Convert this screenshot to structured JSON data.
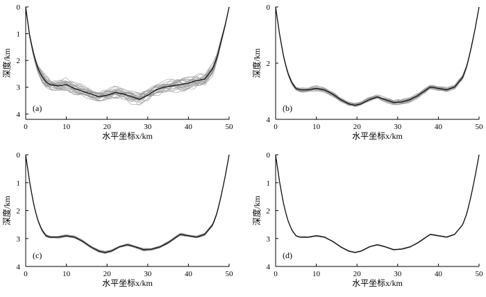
{
  "chart_data": [
    {
      "type": "line",
      "panel_label": "(a)",
      "xlabel": "水平坐标x/km",
      "ylabel": "深度/km",
      "xlim": [
        0,
        50
      ],
      "ylim": [
        4.2,
        0
      ],
      "y_inverted": true,
      "xticks": [
        "0",
        "10",
        "20",
        "30",
        "40",
        "50"
      ],
      "yticks": [
        "0",
        "1",
        "2",
        "3",
        "4"
      ],
      "grid": false,
      "series_style": "ensemble of ~25 overlapping gray curves around a black mean curve",
      "ensemble_count": 25,
      "noise_amplitude_km": 0.28,
      "mean_curve": {
        "x": [
          0,
          1,
          2,
          3,
          4,
          5,
          6,
          8,
          10,
          12,
          14,
          16,
          18,
          20,
          22,
          24,
          26,
          28,
          30,
          32,
          34,
          36,
          38,
          40,
          42,
          44,
          46,
          47,
          48,
          49,
          50
        ],
        "y": [
          0,
          1.1,
          1.8,
          2.3,
          2.6,
          2.8,
          2.9,
          2.95,
          2.9,
          3.05,
          3.15,
          3.25,
          3.35,
          3.3,
          3.2,
          3.25,
          3.35,
          3.45,
          3.3,
          3.1,
          3.0,
          2.95,
          2.9,
          2.85,
          2.75,
          2.7,
          2.3,
          1.9,
          1.3,
          0.7,
          0
        ]
      }
    },
    {
      "type": "line",
      "panel_label": "(b)",
      "xlabel": "水平坐标x/km",
      "ylabel": "深度/km",
      "xlim": [
        0,
        50
      ],
      "ylim": [
        4,
        0
      ],
      "y_inverted": true,
      "xticks": [
        "0",
        "10",
        "20",
        "30",
        "40",
        "50"
      ],
      "yticks": [
        "0",
        "2",
        "4"
      ],
      "grid": false,
      "series_style": "ensemble of ~25 overlapping gray curves around a black mean curve",
      "ensemble_count": 25,
      "noise_amplitude_km": 0.1,
      "mean_curve": {
        "x": [
          0,
          1,
          2,
          3,
          4,
          5,
          6,
          8,
          10,
          12,
          14,
          16,
          18,
          19.5,
          21,
          23,
          25,
          27,
          29,
          31,
          33,
          35,
          37,
          38,
          40,
          42,
          44,
          46,
          47,
          48,
          49,
          50
        ],
        "y": [
          0,
          1.0,
          1.8,
          2.35,
          2.7,
          2.9,
          2.95,
          2.95,
          2.9,
          2.95,
          3.1,
          3.3,
          3.45,
          3.5,
          3.45,
          3.3,
          3.2,
          3.3,
          3.4,
          3.38,
          3.3,
          3.15,
          2.95,
          2.85,
          2.9,
          2.95,
          2.85,
          2.5,
          2.1,
          1.5,
          0.8,
          0
        ]
      }
    },
    {
      "type": "line",
      "panel_label": "(c)",
      "xlabel": "水平坐标x/km",
      "ylabel": "深度/km",
      "xlim": [
        0,
        50
      ],
      "ylim": [
        4,
        0
      ],
      "y_inverted": true,
      "xticks": [
        "0",
        "10",
        "20",
        "30",
        "40",
        "50"
      ],
      "yticks": [
        "0",
        "1",
        "2",
        "3",
        "4"
      ],
      "grid": false,
      "series_style": "ensemble of ~25 overlapping gray curves around a black mean curve",
      "ensemble_count": 25,
      "noise_amplitude_km": 0.05,
      "mean_curve": {
        "x": [
          0,
          1,
          2,
          3,
          4,
          5,
          6,
          8,
          10,
          12,
          14,
          16,
          18,
          19.5,
          21,
          23,
          25,
          27,
          29,
          31,
          33,
          35,
          37,
          38,
          40,
          42,
          44,
          46,
          47,
          48,
          49,
          50
        ],
        "y": [
          0,
          1.0,
          1.8,
          2.35,
          2.7,
          2.9,
          2.95,
          2.95,
          2.9,
          2.95,
          3.1,
          3.3,
          3.45,
          3.5,
          3.45,
          3.3,
          3.22,
          3.3,
          3.4,
          3.38,
          3.3,
          3.15,
          2.95,
          2.85,
          2.9,
          2.95,
          2.85,
          2.5,
          2.1,
          1.5,
          0.8,
          0
        ]
      }
    },
    {
      "type": "line",
      "panel_label": "(d)",
      "xlabel": "水平坐标x/km",
      "ylabel": "深度/km",
      "xlim": [
        0,
        50
      ],
      "ylim": [
        4,
        0
      ],
      "y_inverted": true,
      "xticks": [
        "0",
        "10",
        "20",
        "30",
        "40",
        "50"
      ],
      "yticks": [
        "0",
        "1",
        "2",
        "3",
        "4"
      ],
      "grid": false,
      "series_style": "ensemble of ~25 overlapping gray curves around a black mean curve",
      "ensemble_count": 25,
      "noise_amplitude_km": 0.02,
      "mean_curve": {
        "x": [
          0,
          1,
          2,
          3,
          4,
          5,
          6,
          8,
          10,
          12,
          14,
          16,
          18,
          19.5,
          21,
          23,
          25,
          27,
          29,
          31,
          33,
          35,
          37,
          38,
          40,
          42,
          44,
          46,
          47,
          48,
          49,
          50
        ],
        "y": [
          0,
          1.0,
          1.8,
          2.35,
          2.7,
          2.9,
          2.95,
          2.95,
          2.9,
          2.95,
          3.1,
          3.3,
          3.45,
          3.5,
          3.45,
          3.3,
          3.22,
          3.3,
          3.4,
          3.38,
          3.3,
          3.15,
          2.95,
          2.85,
          2.9,
          2.95,
          2.85,
          2.5,
          2.1,
          1.5,
          0.8,
          0
        ]
      }
    }
  ],
  "colors": {
    "mean": "#111111",
    "ensemble": "#9a9a9a",
    "axis": "#000000"
  }
}
